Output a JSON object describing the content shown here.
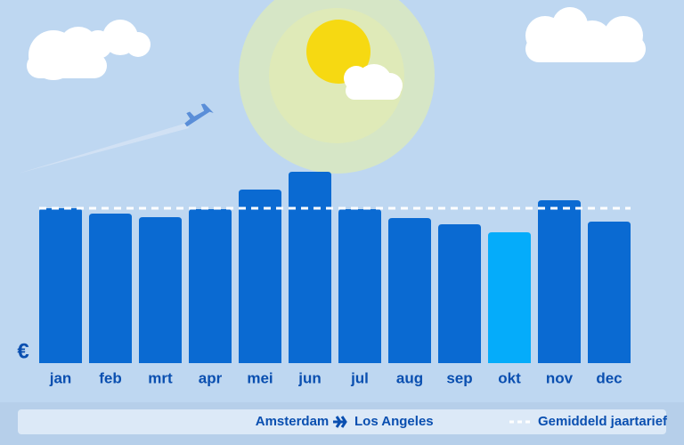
{
  "chart_data": {
    "type": "bar",
    "currency": "€",
    "route": {
      "from": "Amsterdam",
      "to": "Los Angeles"
    },
    "categories": [
      "jan",
      "feb",
      "mrt",
      "apr",
      "mei",
      "jun",
      "jul",
      "aug",
      "sep",
      "okt",
      "nov",
      "dec"
    ],
    "values": [
      174,
      168,
      164,
      173,
      195,
      215,
      173,
      163,
      156,
      147,
      183,
      159
    ],
    "colors": [
      "#0a6ad2",
      "#0a6ad2",
      "#0a6ad2",
      "#0a6ad2",
      "#0a6ad2",
      "#0a6ad2",
      "#0a6ad2",
      "#0a6ad2",
      "#0a6ad2",
      "#05acfa",
      "#0a6ad2",
      "#0a6ad2"
    ],
    "average": {
      "name": "Gemiddeld jaartarief",
      "value": 174,
      "color": "#ffffff"
    }
  }
}
